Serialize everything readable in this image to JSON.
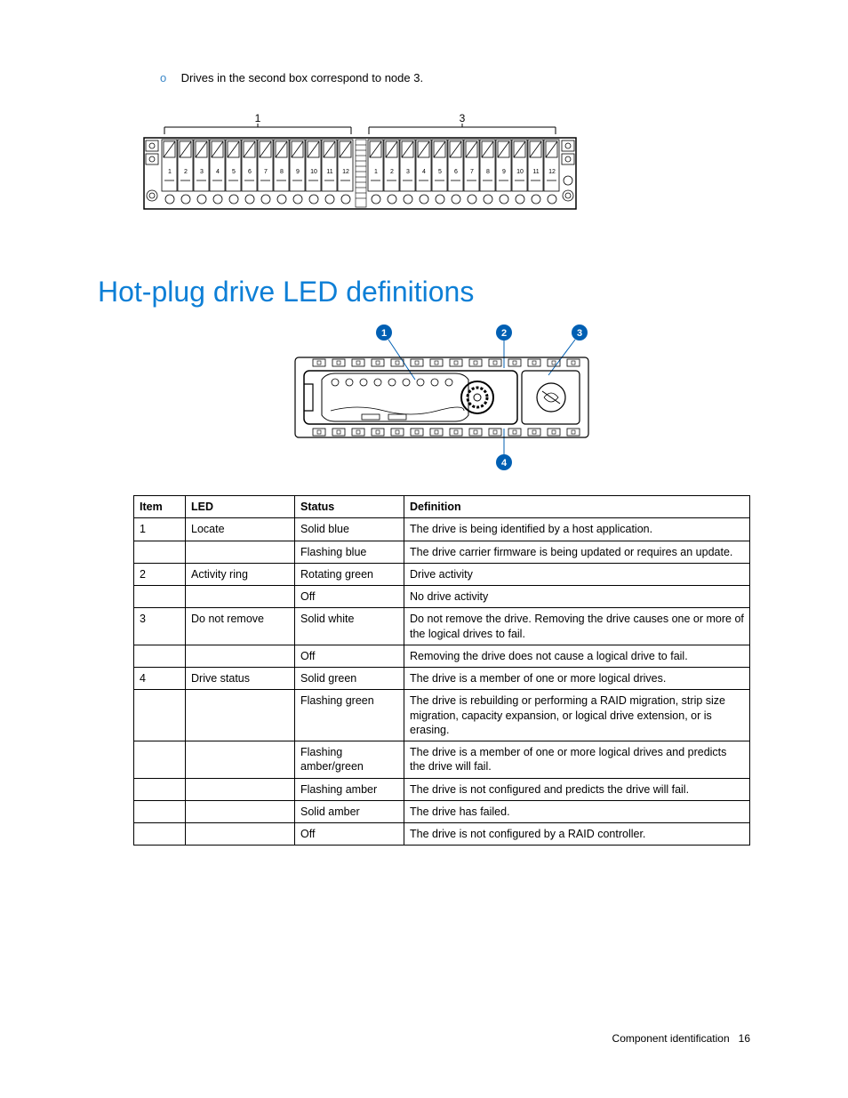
{
  "bullet": {
    "marker": "o",
    "text": "Drives in the second box correspond to node 3."
  },
  "diagram1": {
    "box_labels": [
      "1",
      "3"
    ],
    "slot_numbers": [
      "1",
      "2",
      "3",
      "4",
      "5",
      "6",
      "7",
      "8",
      "9",
      "10",
      "11",
      "12"
    ],
    "stroke": "#000000"
  },
  "heading": "Hot-plug drive LED definitions",
  "heading_color": "#0d7fd6",
  "diagram2": {
    "callouts": [
      "1",
      "2",
      "3",
      "4"
    ],
    "callout_fill": "#005fb3",
    "callout_text": "#ffffff",
    "stroke": "#000000"
  },
  "table": {
    "headers": [
      "Item",
      "LED",
      "Status",
      "Definition"
    ],
    "rows": [
      [
        "1",
        "Locate",
        "Solid blue",
        "The drive is being identified by a host application."
      ],
      [
        "",
        "",
        "Flashing blue",
        "The drive carrier firmware is being updated or requires an update."
      ],
      [
        "2",
        "Activity ring",
        "Rotating green",
        "Drive activity"
      ],
      [
        "",
        "",
        "Off",
        "No drive activity"
      ],
      [
        "3",
        "Do not remove",
        "Solid white",
        "Do not remove the drive. Removing the drive causes one or more of the logical drives to fail."
      ],
      [
        "",
        "",
        "Off",
        "Removing the drive does not cause a logical drive to fail."
      ],
      [
        "4",
        "Drive status",
        "Solid green",
        "The drive is a member of one or more logical drives."
      ],
      [
        "",
        "",
        "Flashing green",
        "The drive is rebuilding or performing a RAID migration, strip size migration, capacity expansion, or logical drive extension, or is erasing."
      ],
      [
        "",
        "",
        "Flashing amber/green",
        "The drive is a member of one or more logical drives and predicts the drive will fail."
      ],
      [
        "",
        "",
        "Flashing amber",
        "The drive is not configured and predicts the drive will fail."
      ],
      [
        "",
        "",
        "Solid amber",
        "The drive has failed."
      ],
      [
        "",
        "",
        "Off",
        "The drive is not configured by a RAID controller."
      ]
    ]
  },
  "footer": {
    "section": "Component identification",
    "page": "16"
  }
}
